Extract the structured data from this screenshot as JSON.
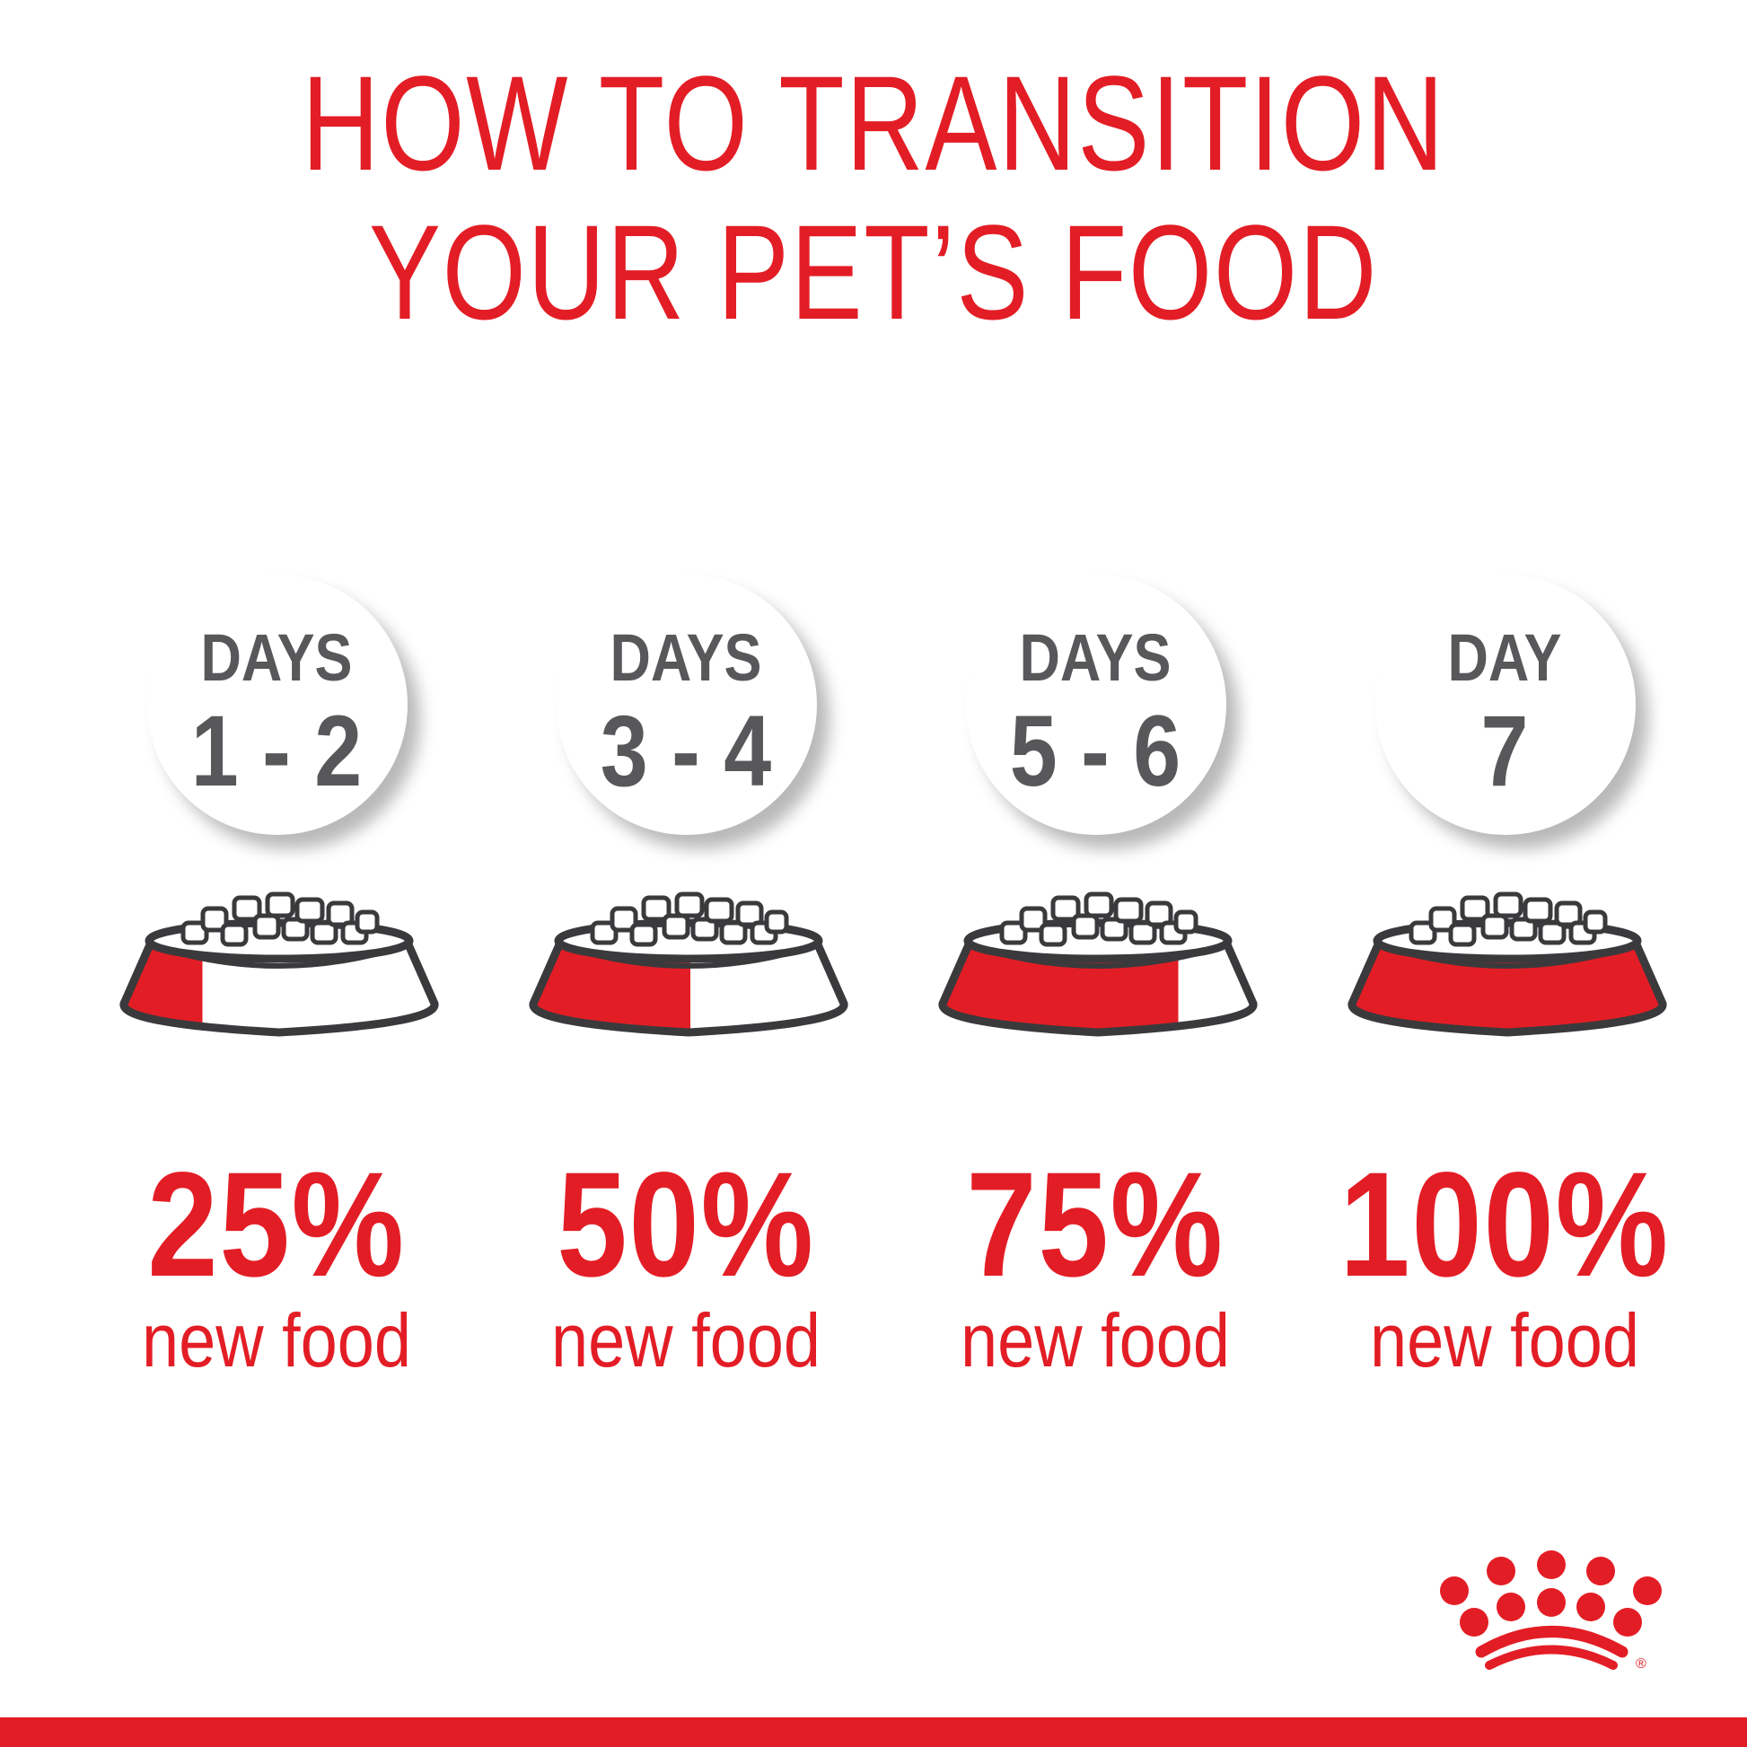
{
  "title": {
    "line1": "HOW TO TRANSITION",
    "line2": "YOUR PET’S FOOD"
  },
  "steps": [
    {
      "days_label": "DAYS",
      "days_range": "1 - 2",
      "percent_label": "25%",
      "new_food_fraction": 0.25,
      "caption": "new food"
    },
    {
      "days_label": "DAYS",
      "days_range": "3 - 4",
      "percent_label": "50%",
      "new_food_fraction": 0.5,
      "caption": "new food"
    },
    {
      "days_label": "DAYS",
      "days_range": "5 - 6",
      "percent_label": "75%",
      "new_food_fraction": 0.75,
      "caption": "new food"
    },
    {
      "days_label": "DAY",
      "days_range": "7",
      "percent_label": "100%",
      "new_food_fraction": 1.0,
      "caption": "new food"
    }
  ],
  "logo": {
    "name": "royal-canin-crown-logo",
    "mark": "®"
  },
  "colors": {
    "accent": "#e31d25",
    "text_gray": "#58585a",
    "outline": "#3a3a3c"
  }
}
